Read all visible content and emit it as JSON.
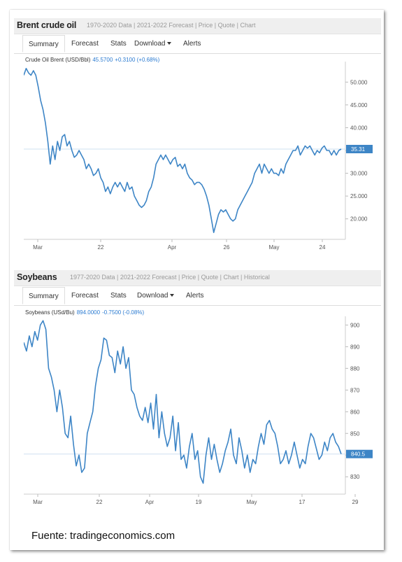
{
  "footer": {
    "source": "Fuente: tradingeconomics.com"
  },
  "brent": {
    "title": "Brent crude oil",
    "links": "1970-2020 Data | 2021-2022 Forecast | Price | Quote | Chart",
    "tabs": [
      "Summary",
      "Forecast",
      "Stats",
      "Download",
      "Alerts"
    ],
    "legend_name": "Crude Oil Brent (USD/Bbl)",
    "legend_price": "45.5700",
    "legend_change": "+0.3100 (+0.68%)",
    "last_label": "35.31"
  },
  "soy": {
    "title": "Soybeans",
    "links": "1977-2020 Data | 2021-2022 Forecast | Price | Quote | Chart | Historical",
    "tabs": [
      "Summary",
      "Forecast",
      "Stats",
      "Download",
      "Alerts"
    ],
    "legend_name": "Soybeans (USd/Bu)",
    "legend_price": "894.0000",
    "legend_change": "-0.7500 (-0.08%)",
    "last_label": "840.5"
  },
  "colors": {
    "line": "#3d85c6",
    "last_badge": "#3d85c6",
    "crosshair": "#cfe0f1"
  },
  "chart_data": [
    {
      "type": "line",
      "title": "Brent crude oil",
      "series": [
        {
          "name": "Crude Oil Brent (USD/Bbl)",
          "values": [
            51.5,
            53.0,
            52.0,
            51.5,
            52.5,
            51.5,
            49,
            46.0,
            44,
            41,
            37,
            32,
            36,
            33,
            37,
            35,
            38,
            38.5,
            36,
            37,
            35,
            33.5,
            34,
            35,
            34,
            33,
            31,
            32,
            31,
            29.5,
            30,
            31,
            29,
            28,
            26,
            27,
            25.5,
            27,
            28,
            27,
            28,
            27,
            26,
            28,
            26.5,
            27,
            25,
            24,
            23,
            22.5,
            23,
            24,
            26,
            27,
            29,
            32,
            33,
            34,
            33,
            34,
            33,
            32,
            33,
            33.5,
            31.5,
            32,
            31,
            32,
            30,
            29,
            28.5,
            27.5,
            28,
            28,
            27.5,
            26.5,
            25,
            23,
            20,
            17,
            19,
            21,
            22,
            21.5,
            22,
            21,
            20,
            19.5,
            20,
            22,
            23,
            24,
            25,
            26,
            27,
            28,
            30,
            31,
            32,
            30,
            32,
            31,
            30,
            31,
            30,
            30,
            29.5,
            31,
            30,
            32,
            33,
            34,
            35,
            35,
            36,
            34,
            35,
            36,
            35.5,
            36,
            35,
            34,
            35,
            34.5,
            35.5,
            36,
            35,
            35,
            34,
            35,
            34,
            35,
            35.31
          ]
        }
      ],
      "x_ticks": [
        "Mar",
        "22",
        "Apr",
        "26",
        "May",
        "24"
      ],
      "y_ticks": [
        "50.000",
        "45.000",
        "40.000",
        "35.000",
        "30.000",
        "25.000",
        "20.000"
      ],
      "ylim": [
        15.5,
        54.5
      ],
      "last_value": 35.31,
      "grid": false
    },
    {
      "type": "line",
      "title": "Soybeans",
      "series": [
        {
          "name": "Soybeans (USd/Bu)",
          "values": [
            892,
            888,
            895,
            890,
            897,
            893,
            900,
            902,
            898,
            880,
            876,
            870,
            860,
            870,
            862,
            850,
            848,
            858,
            845,
            835,
            840,
            832,
            834,
            850,
            855,
            860,
            872,
            880,
            884,
            894,
            893,
            886,
            885,
            878,
            888,
            882,
            890,
            880,
            885,
            870,
            868,
            862,
            858,
            856,
            862,
            855,
            864,
            852,
            868,
            848,
            860,
            850,
            844,
            848,
            858,
            842,
            855,
            838,
            840,
            834,
            844,
            850,
            838,
            842,
            830,
            827,
            840,
            848,
            838,
            845,
            838,
            832,
            836,
            842,
            846,
            852,
            840,
            836,
            848,
            842,
            834,
            840,
            832,
            838,
            836,
            844,
            850,
            845,
            854,
            856,
            852,
            850,
            844,
            836,
            838,
            842,
            836,
            840,
            846,
            840,
            834,
            838,
            836,
            844,
            850,
            848,
            843,
            838,
            840,
            846,
            842,
            848,
            850,
            846,
            844,
            840.5
          ]
        }
      ],
      "x_ticks": [
        "Mar",
        "22",
        "Apr",
        "19",
        "May",
        "17",
        "29"
      ],
      "y_ticks": [
        "900",
        "890",
        "880",
        "870",
        "860",
        "850",
        "840",
        "830"
      ],
      "ylim": [
        822,
        904
      ],
      "last_value": 840.5,
      "grid": false
    }
  ]
}
